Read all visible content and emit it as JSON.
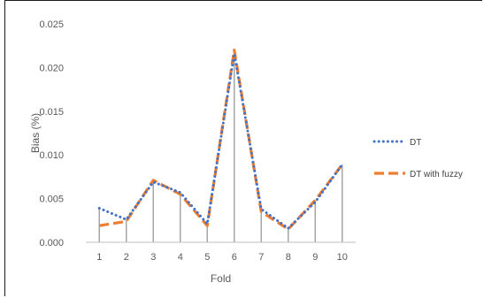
{
  "chart_data": {
    "type": "line",
    "title": "",
    "xlabel": "Fold",
    "ylabel": "Bias (%)",
    "categories": [
      "1",
      "2",
      "3",
      "4",
      "5",
      "6",
      "7",
      "8",
      "9",
      "10"
    ],
    "ylim": [
      0,
      0.025
    ],
    "yticks": [
      "0.000",
      "0.005",
      "0.010",
      "0.015",
      "0.020",
      "0.025"
    ],
    "ytick_values": [
      0,
      0.005,
      0.01,
      0.015,
      0.02,
      0.025
    ],
    "grid": false,
    "drop_lines": true,
    "legend_position": "right",
    "series": [
      {
        "name": "DT",
        "style": "dotted",
        "color": "#4472C4",
        "values": [
          0.0039,
          0.0026,
          0.0069,
          0.0057,
          0.0021,
          0.0216,
          0.0038,
          0.0016,
          0.0046,
          0.0089
        ]
      },
      {
        "name": "DT with fuzzy",
        "style": "dashed",
        "color": "#ED7D31",
        "values": [
          0.0019,
          0.0024,
          0.0071,
          0.0055,
          0.0019,
          0.022,
          0.0035,
          0.0015,
          0.0048,
          0.0089
        ]
      }
    ],
    "drop_line_color": "#A6A6A6"
  }
}
